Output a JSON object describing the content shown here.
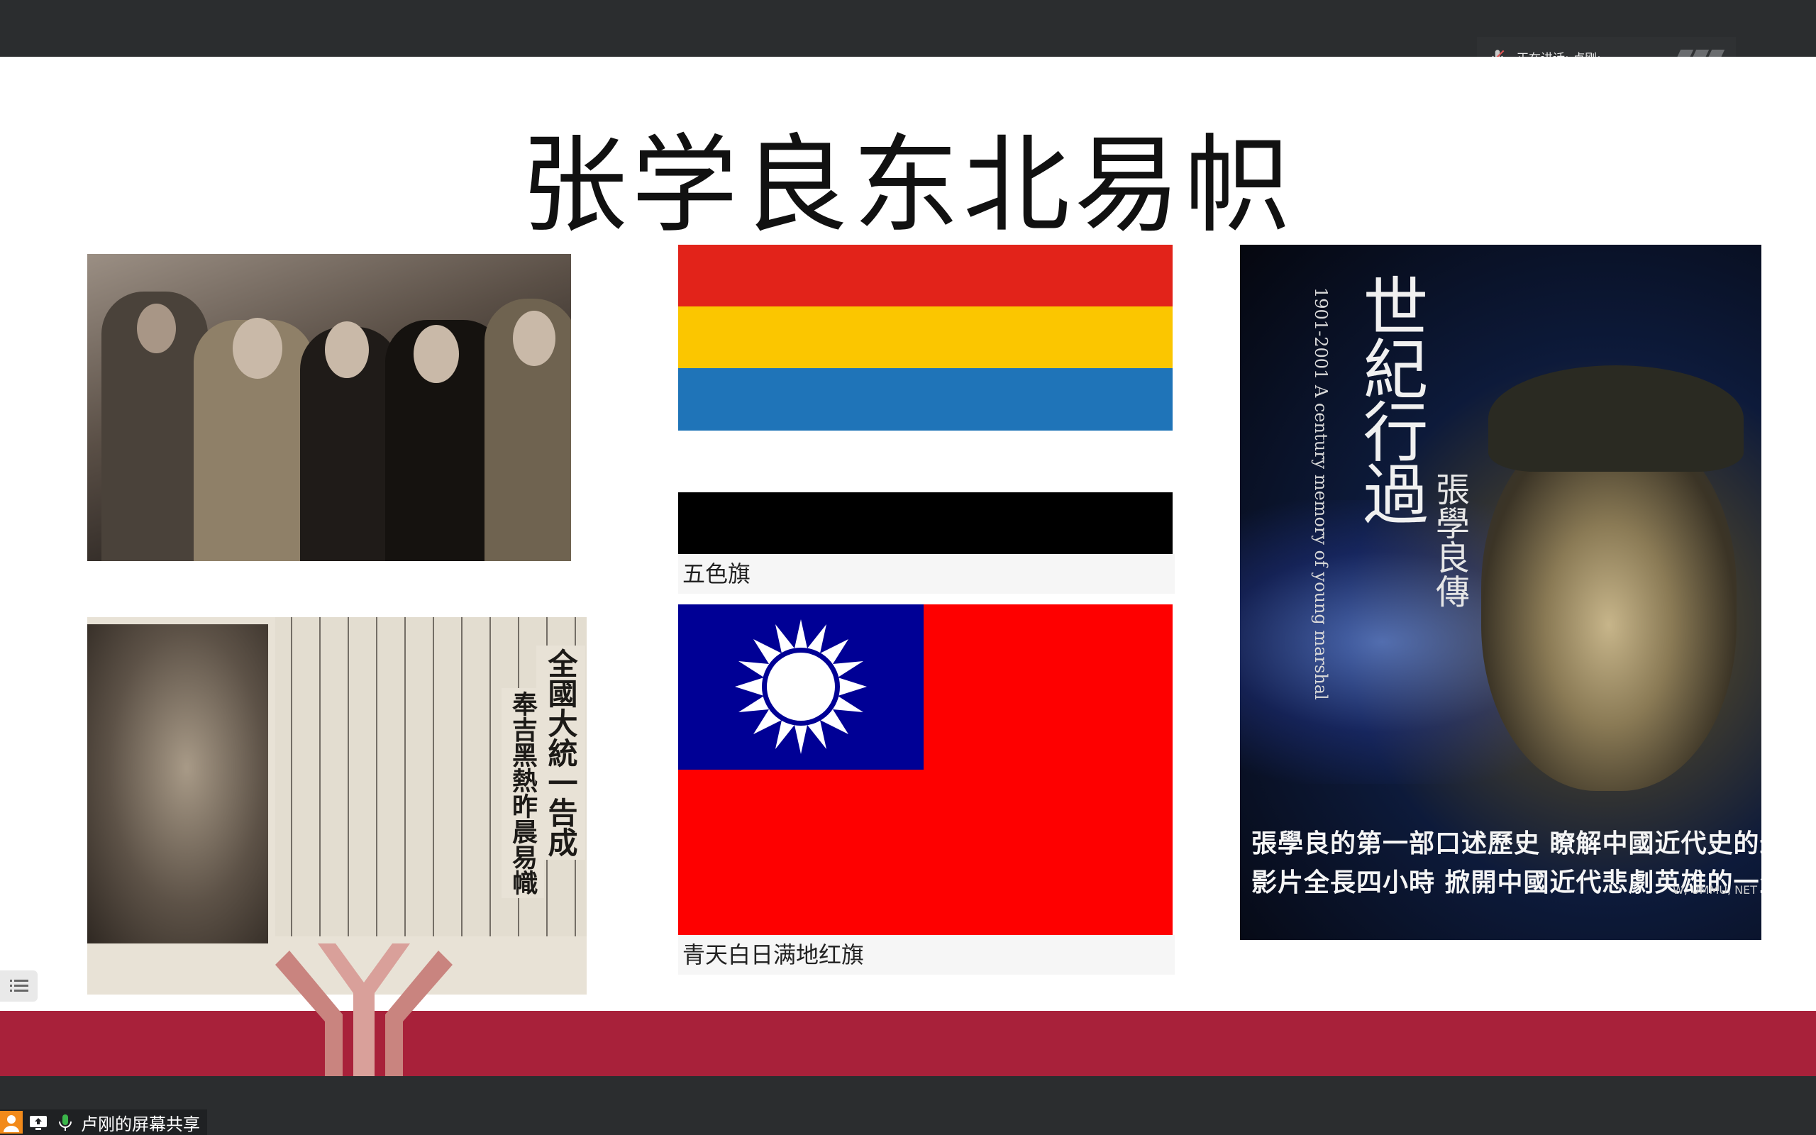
{
  "meeting": {
    "speaking_label": "正在讲话: 卢刚;",
    "share_label": "卢刚的屏幕共享"
  },
  "slide": {
    "title": "张学良东北易帜",
    "flag1_caption": "五色旗",
    "flag2_caption": "青天白日满地红旗",
    "flag1_colors": [
      "#e2231a",
      "#fbc600",
      "#1f74b8",
      "#ffffff",
      "#000000"
    ],
    "newspaper": {
      "headline": "全國大統一告成",
      "subhead": "奉吉黑熱昨晨易幟"
    },
    "poster": {
      "title": "世紀行過",
      "name": "張學良傳",
      "english": "1901-2001 A century memory of young marshal",
      "line1": "張學良的第一部口述歷史 瞭解中國近代史的最佳素材",
      "line2": "影片全長四小時 掀開中國近代悲劇英雄的一生",
      "watermark": "W, UMMU, NET"
    },
    "band_color": "#a8213a"
  }
}
